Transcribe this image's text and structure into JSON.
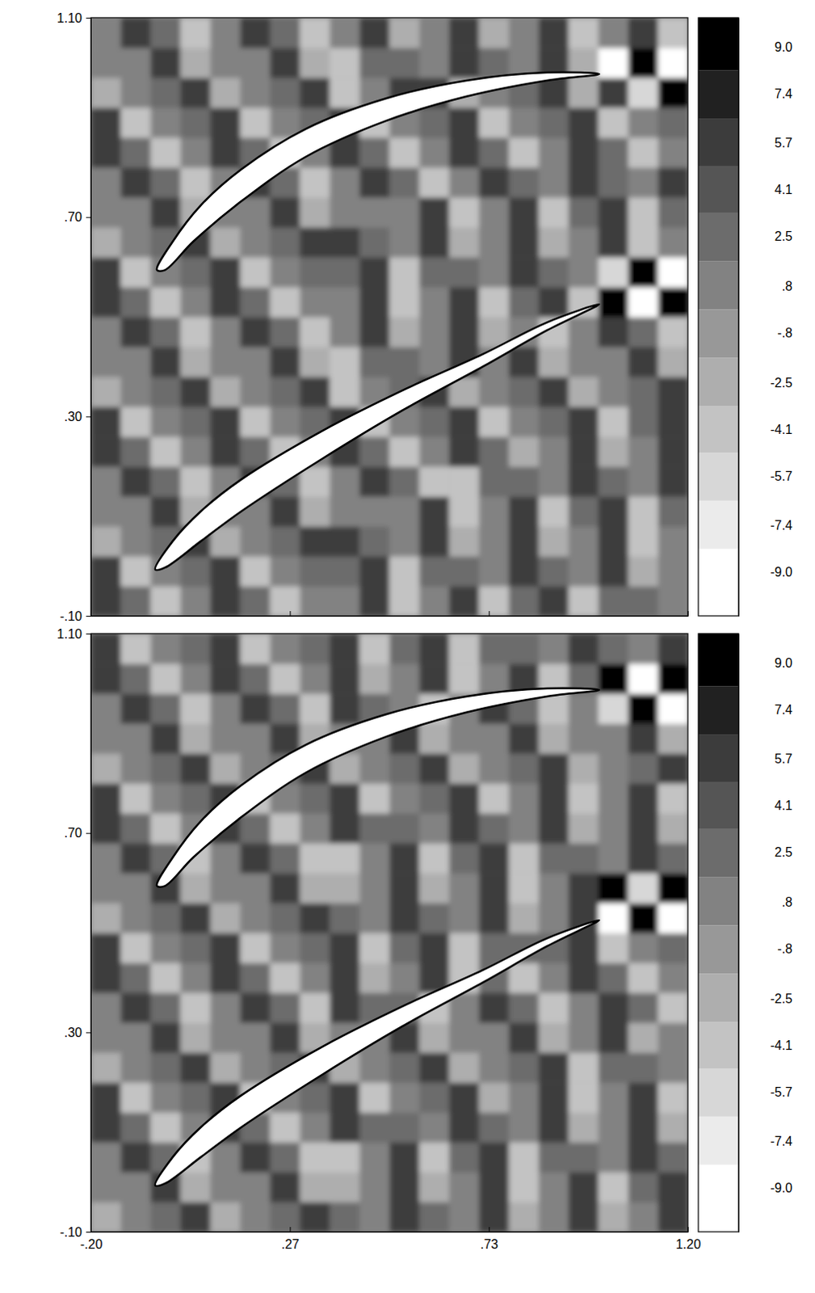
{
  "chart_data": [
    {
      "type": "heatmap",
      "xlim": [
        -0.2,
        1.2
      ],
      "ylim": [
        -0.1,
        1.1
      ],
      "xticks": [
        {
          "value": -0.2,
          "label": "-.20"
        },
        {
          "value": 0.2667,
          "label": ".27"
        },
        {
          "value": 0.7333,
          "label": ".73"
        },
        {
          "value": 1.2,
          "label": "1.20"
        }
      ],
      "yticks": [
        {
          "value": -0.1,
          "label": "-.10"
        },
        {
          "value": 0.3,
          "label": ".30"
        },
        {
          "value": 0.7,
          "label": ".70"
        },
        {
          "value": 1.1,
          "label": "1.10"
        }
      ],
      "tick_labels": "y",
      "colorbar": {
        "range": [
          -10.5,
          10
        ],
        "ticks": [
          {
            "value": 9,
            "label": "9.0"
          },
          7.4,
          5.7,
          4.1,
          2.5,
          {
            "value": 0.8,
            "label": ".8"
          },
          {
            "value": -0.8,
            "label": "-.8"
          },
          -2.5,
          -4.1,
          -5.7,
          -7.4,
          {
            "value": -9,
            "label": "-9.0"
          }
        ]
      },
      "x": [
        -0.165,
        -0.095,
        -0.025,
        0.045,
        0.115,
        0.185,
        0.255,
        0.325,
        0.395,
        0.465,
        0.535,
        0.605,
        0.675,
        0.745,
        0.815,
        0.885,
        0.955,
        1.025,
        1.095,
        1.165
      ],
      "y": [
        -0.07,
        -0.01,
        0.05,
        0.11,
        0.17,
        0.23,
        0.29,
        0.35,
        0.41,
        0.47,
        0.53,
        0.59,
        0.65,
        0.71,
        0.77,
        0.83,
        0.89,
        0.95,
        1.01,
        1.07
      ],
      "z": [
        [
          5.7,
          2.5,
          -4.1,
          0,
          5.7,
          2.5,
          -4.1,
          0,
          0,
          5.7,
          -4.1,
          0,
          5.7,
          -4.1,
          2.5,
          5.7,
          -4.1,
          2.5,
          2.5,
          0
        ],
        [
          5.7,
          -4.1,
          0,
          2.5,
          5.7,
          -4.1,
          0,
          2.5,
          2.5,
          5.7,
          -4.1,
          2.5,
          2.5,
          0,
          5.7,
          2.5,
          0,
          5.7,
          -2.5,
          0
        ],
        [
          -2.5,
          0,
          2.5,
          5.7,
          -2.5,
          0,
          2.5,
          5.7,
          5.7,
          2.5,
          0,
          5.7,
          -2.5,
          0,
          5.7,
          -2.5,
          0,
          5.7,
          -4.1,
          0
        ],
        [
          0,
          0,
          5.7,
          -2.5,
          0,
          0,
          5.7,
          -2.5,
          0,
          0,
          0,
          5.7,
          -4.1,
          0,
          5.7,
          -4.1,
          2.5,
          5.7,
          -4.1,
          2.5
        ],
        [
          0,
          5.7,
          2.5,
          -4.1,
          0,
          5.7,
          2.5,
          -4.1,
          0,
          5.7,
          2.5,
          -4.1,
          -4.1,
          2.5,
          2.5,
          0,
          5.7,
          2.5,
          0,
          5.7
        ],
        [
          5.7,
          2.5,
          -4.1,
          0,
          5.7,
          2.5,
          -4.1,
          0,
          5.7,
          2.5,
          -4.1,
          0,
          5.7,
          2.5,
          -2.5,
          0,
          5.7,
          -2.5,
          0,
          5.7
        ],
        [
          5.7,
          -4.1,
          0,
          2.5,
          5.7,
          -4.1,
          0,
          2.5,
          5.7,
          -4.1,
          0,
          2.5,
          5.7,
          -4.1,
          0,
          2.5,
          5.7,
          -4.1,
          2.5,
          5.7
        ],
        [
          -2.5,
          0,
          2.5,
          5.7,
          -2.5,
          0,
          2.5,
          5.7,
          -4.1,
          0,
          2.5,
          5.7,
          -2.5,
          0,
          2.5,
          5.7,
          -2.5,
          0,
          2.5,
          5.7
        ],
        [
          0,
          0,
          5.7,
          -2.5,
          0,
          0,
          5.7,
          -2.5,
          -4.1,
          2.5,
          2.5,
          0,
          5.7,
          0,
          5.7,
          -2.5,
          0,
          0,
          5.7,
          -2.5
        ],
        [
          0,
          5.7,
          2.5,
          -4.1,
          0,
          5.7,
          2.5,
          -4.1,
          0,
          5.7,
          -2.5,
          0,
          5.7,
          -2.5,
          0,
          -4.1,
          0,
          5.7,
          2.5,
          -4.1
        ],
        [
          5.7,
          2.5,
          -4.1,
          0,
          5.7,
          2.5,
          -4.1,
          0,
          0,
          5.7,
          -4.1,
          0,
          5.7,
          -4.1,
          2.5,
          5.7,
          -4.1,
          9,
          -9,
          9
        ],
        [
          5.7,
          -4.1,
          0,
          2.5,
          5.7,
          -4.1,
          0,
          2.5,
          2.5,
          5.7,
          -4.1,
          2.5,
          2.5,
          0,
          5.7,
          2.5,
          0,
          -5.7,
          9,
          -9
        ],
        [
          -2.5,
          0,
          2.5,
          5.7,
          -2.5,
          0,
          2.5,
          5.7,
          5.7,
          2.5,
          0,
          5.7,
          -2.5,
          0,
          5.7,
          -2.5,
          0,
          5.7,
          -4.1,
          0
        ],
        [
          0,
          0,
          5.7,
          -2.5,
          0,
          0,
          5.7,
          -2.5,
          0,
          0,
          0,
          5.7,
          -4.1,
          0,
          5.7,
          -4.1,
          2.5,
          5.7,
          -4.1,
          2.5
        ],
        [
          0,
          5.7,
          2.5,
          -4.1,
          0,
          5.7,
          2.5,
          -4.1,
          0,
          5.7,
          2.5,
          -4.1,
          0,
          5.7,
          2.5,
          0,
          5.7,
          2.5,
          0,
          5.7
        ],
        [
          5.7,
          2.5,
          -4.1,
          0,
          5.7,
          2.5,
          -4.1,
          0,
          5.7,
          2.5,
          -4.1,
          0,
          5.7,
          2.5,
          -4.1,
          0,
          5.7,
          2.5,
          -4.1,
          0
        ],
        [
          5.7,
          -4.1,
          0,
          2.5,
          5.7,
          -4.1,
          0,
          2.5,
          5.7,
          -4.1,
          0,
          2.5,
          5.7,
          -4.1,
          0,
          2.5,
          5.7,
          -4.1,
          0,
          2.5
        ],
        [
          -2.5,
          0,
          2.5,
          5.7,
          -2.5,
          0,
          2.5,
          5.7,
          -4.1,
          0,
          5.7,
          5.7,
          -2.5,
          0,
          2.5,
          5.7,
          -2.5,
          5.7,
          -5.7,
          9
        ],
        [
          0,
          0,
          5.7,
          -2.5,
          0,
          0,
          5.7,
          -2.5,
          -4.1,
          2.5,
          2.5,
          0,
          5.7,
          2.5,
          0,
          5.7,
          -2.5,
          -9,
          9,
          -9
        ],
        [
          0,
          5.7,
          2.5,
          -4.1,
          0,
          5.7,
          2.5,
          -4.1,
          0,
          5.7,
          -2.5,
          0,
          5.7,
          -2.5,
          0,
          5.7,
          -4.1,
          0,
          5.7,
          -4.1
        ]
      ],
      "blades": [
        {
          "x": [
            -0.045,
            -0.008,
            0.058,
            0.153,
            0.304,
            0.492,
            0.681,
            0.87,
            0.992,
            0.87,
            0.681,
            0.492,
            0.304,
            0.153,
            0.04,
            -0.026
          ],
          "y": [
            0.594,
            0.651,
            0.724,
            0.796,
            0.877,
            0.938,
            0.974,
            0.99,
            0.987,
            0.974,
            0.942,
            0.893,
            0.821,
            0.732,
            0.651,
            0.594
          ]
        },
        {
          "x": [
            -0.049,
            -0.008,
            0.058,
            0.153,
            0.342,
            0.53,
            0.719,
            0.87,
            0.992,
            0.87,
            0.719,
            0.53,
            0.342,
            0.153,
            0.058,
            -0.026
          ],
          "y": [
            -0.007,
            0.05,
            0.11,
            0.174,
            0.271,
            0.352,
            0.425,
            0.489,
            0.525,
            0.473,
            0.4,
            0.312,
            0.215,
            0.11,
            0.05,
            -0.003
          ]
        }
      ]
    },
    {
      "type": "heatmap",
      "xlim": [
        -0.2,
        1.2
      ],
      "ylim": [
        -0.1,
        1.1
      ],
      "xticks": [
        {
          "value": -0.2,
          "label": "-.20"
        },
        {
          "value": 0.2667,
          "label": ".27"
        },
        {
          "value": 0.7333,
          "label": ".73"
        },
        {
          "value": 1.2,
          "label": "1.20"
        }
      ],
      "yticks": [
        {
          "value": -0.1,
          "label": "-.10"
        },
        {
          "value": 0.3,
          "label": ".30"
        },
        {
          "value": 0.7,
          "label": ".70"
        },
        {
          "value": 1.1,
          "label": "1.10"
        }
      ],
      "colorbar": {
        "range": [
          -10.5,
          10
        ],
        "ticks": [
          {
            "value": 9,
            "label": "9.0"
          },
          7.4,
          5.7,
          4.1,
          2.5,
          {
            "value": 0.8,
            "label": ".8"
          },
          {
            "value": -0.8,
            "label": "-.8"
          },
          -2.5,
          -4.1,
          -5.7,
          -7.4,
          {
            "value": -9,
            "label": "-9.0"
          }
        ]
      },
      "x": [
        -0.165,
        -0.095,
        -0.025,
        0.045,
        0.115,
        0.185,
        0.255,
        0.325,
        0.395,
        0.465,
        0.535,
        0.605,
        0.675,
        0.745,
        0.815,
        0.885,
        0.955,
        1.025,
        1.095,
        1.165
      ],
      "y": [
        -0.07,
        -0.01,
        0.05,
        0.11,
        0.17,
        0.23,
        0.29,
        0.35,
        0.41,
        0.47,
        0.53,
        0.59,
        0.65,
        0.71,
        0.77,
        0.83,
        0.89,
        0.95,
        1.01,
        1.07
      ],
      "z": [
        [
          -2.5,
          0,
          2.5,
          5.7,
          -2.5,
          0,
          2.5,
          5.7,
          2.5,
          0,
          5.7,
          2.5,
          0,
          5.7,
          -2.5,
          0,
          5.7,
          -2.5,
          0,
          5.7
        ],
        [
          0,
          0,
          5.7,
          -2.5,
          0,
          0,
          5.7,
          -2.5,
          -2.5,
          0,
          5.7,
          -2.5,
          0,
          5.7,
          -4.1,
          0,
          5.7,
          -4.1,
          2.5,
          5.7
        ],
        [
          0,
          5.7,
          2.5,
          -4.1,
          0,
          5.7,
          2.5,
          -4.1,
          -4.1,
          0,
          5.7,
          -4.1,
          2.5,
          5.7,
          -4.1,
          2.5,
          2.5,
          0,
          5.7,
          2.5
        ],
        [
          5.7,
          2.5,
          -4.1,
          0,
          5.7,
          2.5,
          -4.1,
          0,
          5.7,
          2.5,
          2.5,
          0,
          5.7,
          2.5,
          0,
          5.7,
          -2.5,
          0,
          5.7,
          -2.5
        ],
        [
          5.7,
          -4.1,
          0,
          2.5,
          5.7,
          -4.1,
          0,
          2.5,
          5.7,
          -4.1,
          0,
          2.5,
          5.7,
          -2.5,
          0,
          5.7,
          -4.1,
          0,
          5.7,
          -4.1
        ],
        [
          -2.5,
          0,
          2.5,
          5.7,
          -2.5,
          0,
          2.5,
          5.7,
          -2.5,
          0,
          2.5,
          5.7,
          -2.5,
          0,
          2.5,
          5.7,
          -4.1,
          2.5,
          2.5,
          0
        ],
        [
          0,
          0,
          5.7,
          -2.5,
          0,
          0,
          5.7,
          -2.5,
          0,
          0,
          5.7,
          -2.5,
          0,
          0,
          5.7,
          -2.5,
          0,
          5.7,
          -2.5,
          0
        ],
        [
          0,
          5.7,
          2.5,
          -4.1,
          0,
          5.7,
          2.5,
          -4.1,
          5.7,
          2.5,
          2.5,
          -4.1,
          0,
          5.7,
          2.5,
          -4.1,
          0,
          5.7,
          2.5,
          -4.1
        ],
        [
          5.7,
          2.5,
          -4.1,
          0,
          5.7,
          2.5,
          -4.1,
          0,
          5.7,
          -2.5,
          0,
          5.7,
          -4.1,
          2.5,
          -4.1,
          0,
          5.7,
          2.5,
          -4.1,
          0
        ],
        [
          5.7,
          -4.1,
          0,
          2.5,
          5.7,
          -4.1,
          0,
          2.5,
          5.7,
          -4.1,
          2.5,
          5.7,
          -4.1,
          2.5,
          2.5,
          2.5,
          5.7,
          -4.1,
          0,
          2.5
        ],
        [
          -2.5,
          0,
          2.5,
          5.7,
          -2.5,
          0,
          2.5,
          5.7,
          2.5,
          0,
          5.7,
          2.5,
          0,
          5.7,
          -2.5,
          0,
          5.7,
          -9,
          9,
          -9
        ],
        [
          0,
          0,
          5.7,
          -2.5,
          0,
          0,
          5.7,
          -2.5,
          -2.5,
          0,
          5.7,
          -2.5,
          0,
          5.7,
          -4.1,
          0,
          5.7,
          9,
          -5.7,
          9
        ],
        [
          0,
          5.7,
          2.5,
          -4.1,
          0,
          5.7,
          2.5,
          -4.1,
          -4.1,
          0,
          5.7,
          -4.1,
          2.5,
          5.7,
          -4.1,
          2.5,
          2.5,
          0,
          5.7,
          2.5
        ],
        [
          5.7,
          2.5,
          -4.1,
          0,
          5.7,
          2.5,
          -4.1,
          0,
          5.7,
          2.5,
          2.5,
          0,
          5.7,
          2.5,
          0,
          5.7,
          -2.5,
          0,
          5.7,
          -2.5
        ],
        [
          5.7,
          -4.1,
          0,
          2.5,
          5.7,
          -4.1,
          0,
          2.5,
          5.7,
          -4.1,
          0,
          2.5,
          5.7,
          -4.1,
          0,
          5.7,
          -4.1,
          0,
          5.7,
          -4.1
        ],
        [
          -2.5,
          0,
          2.5,
          5.7,
          -2.5,
          0,
          2.5,
          5.7,
          -2.5,
          0,
          2.5,
          5.7,
          -2.5,
          0,
          2.5,
          5.7,
          -2.5,
          0,
          2.5,
          5.7
        ],
        [
          0,
          0,
          5.7,
          -2.5,
          0,
          0,
          5.7,
          -2.5,
          0,
          0,
          5.7,
          -2.5,
          0,
          0,
          5.7,
          -2.5,
          0,
          0,
          5.7,
          -2.5
        ],
        [
          0,
          5.7,
          2.5,
          -4.1,
          0,
          5.7,
          2.5,
          -4.1,
          5.7,
          2.5,
          0,
          -4.1,
          0,
          5.7,
          2.5,
          -4.1,
          0,
          -5.7,
          9,
          -9
        ],
        [
          5.7,
          2.5,
          -4.1,
          0,
          5.7,
          2.5,
          -4.1,
          0,
          5.7,
          -2.5,
          0,
          5.7,
          -4.1,
          0,
          5.7,
          -4.1,
          2.5,
          9,
          -9,
          9
        ],
        [
          5.7,
          -4.1,
          0,
          2.5,
          5.7,
          -4.1,
          0,
          2.5,
          5.7,
          -4.1,
          2.5,
          5.7,
          -4.1,
          2.5,
          2.5,
          0,
          5.7,
          2.5,
          0,
          5.7
        ]
      ],
      "blades": [
        {
          "x": [
            -0.045,
            -0.008,
            0.058,
            0.153,
            0.304,
            0.492,
            0.681,
            0.87,
            0.992,
            0.87,
            0.681,
            0.492,
            0.304,
            0.153,
            0.04,
            -0.026
          ],
          "y": [
            0.594,
            0.651,
            0.724,
            0.796,
            0.877,
            0.938,
            0.974,
            0.99,
            0.987,
            0.974,
            0.942,
            0.893,
            0.821,
            0.732,
            0.651,
            0.594
          ]
        },
        {
          "x": [
            -0.049,
            -0.008,
            0.058,
            0.153,
            0.342,
            0.53,
            0.719,
            0.87,
            0.992,
            0.87,
            0.719,
            0.53,
            0.342,
            0.153,
            0.058,
            -0.026
          ],
          "y": [
            -0.007,
            0.05,
            0.11,
            0.174,
            0.271,
            0.352,
            0.425,
            0.489,
            0.525,
            0.473,
            0.4,
            0.312,
            0.215,
            0.11,
            0.05,
            -0.003
          ]
        }
      ]
    }
  ]
}
